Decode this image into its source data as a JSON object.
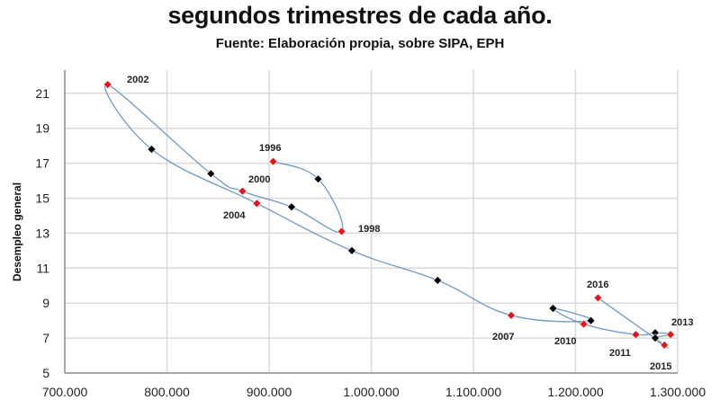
{
  "header": {
    "title": "segundos trimestres de cada año.",
    "subtitle": "Fuente: Elaboración propia, sobre SIPA, EPH"
  },
  "colors": {
    "line": "#6f97c9",
    "labeled_marker": "#e8141b",
    "unlabeled_marker": "#000000",
    "grid": "#d9d9d9",
    "axis": "#8c8c8c"
  },
  "chart_data": {
    "type": "scatter",
    "connected": true,
    "title": "segundos trimestres de cada año.",
    "subtitle": "Fuente: Elaboración propia, sobre SIPA, EPH",
    "xlabel": "",
    "ylabel": "Desempleo general",
    "xlim": [
      700000,
      1300000
    ],
    "ylim": [
      5,
      22
    ],
    "x_ticks": [
      "700.000",
      "800.000",
      "900.000",
      "1.000.000",
      "1.100.000",
      "1.200.000",
      "1.300.000"
    ],
    "y_ticks": [
      "5",
      "7",
      "9",
      "11",
      "13",
      "15",
      "17",
      "19",
      "21"
    ],
    "grid": true,
    "legend": null,
    "points": [
      {
        "label": "1996",
        "x": 904000,
        "y": 17.1,
        "marker": "red"
      },
      {
        "label": "",
        "x": 948000,
        "y": 16.1,
        "marker": "black"
      },
      {
        "label": "1998",
        "x": 971000,
        "y": 13.1,
        "marker": "red"
      },
      {
        "label": "",
        "x": 922000,
        "y": 14.5,
        "marker": "black"
      },
      {
        "label": "2000",
        "x": 874000,
        "y": 15.4,
        "marker": "red"
      },
      {
        "label": "",
        "x": 843000,
        "y": 16.4,
        "marker": "black"
      },
      {
        "label": "2002",
        "x": 742000,
        "y": 21.5,
        "marker": "red"
      },
      {
        "label": "",
        "x": 785000,
        "y": 17.8,
        "marker": "black"
      },
      {
        "label": "2004",
        "x": 888000,
        "y": 14.7,
        "marker": "red"
      },
      {
        "label": "",
        "x": 981000,
        "y": 12.0,
        "marker": "black"
      },
      {
        "label": "",
        "x": 1065000,
        "y": 10.3,
        "marker": "black"
      },
      {
        "label": "2007",
        "x": 1137000,
        "y": 8.3,
        "marker": "red"
      },
      {
        "label": "",
        "x": 1215000,
        "y": 8.0,
        "marker": "black"
      },
      {
        "label": "",
        "x": 1178000,
        "y": 8.7,
        "marker": "black"
      },
      {
        "label": "2010",
        "x": 1208000,
        "y": 7.8,
        "marker": "red"
      },
      {
        "label": "2011",
        "x": 1259000,
        "y": 7.2,
        "marker": "red"
      },
      {
        "label": "",
        "x": 1278000,
        "y": 7.3,
        "marker": "black"
      },
      {
        "label": "2013",
        "x": 1293000,
        "y": 7.2,
        "marker": "red"
      },
      {
        "label": "",
        "x": 1278000,
        "y": 7.0,
        "marker": "black"
      },
      {
        "label": "2015",
        "x": 1287000,
        "y": 6.6,
        "marker": "red"
      },
      {
        "label": "2016",
        "x": 1222000,
        "y": 9.3,
        "marker": "red"
      }
    ],
    "label_positions": {
      "1996": [
        288,
        168
      ],
      "1998": [
        398,
        258
      ],
      "2000": [
        276,
        203
      ],
      "2002": [
        141,
        92
      ],
      "2004": [
        248,
        243
      ],
      "2007": [
        547,
        378
      ],
      "2010": [
        616,
        383
      ],
      "2011": [
        677,
        396
      ],
      "2013": [
        746,
        362
      ],
      "2015": [
        722,
        411
      ],
      "2016": [
        652,
        320
      ]
    }
  }
}
